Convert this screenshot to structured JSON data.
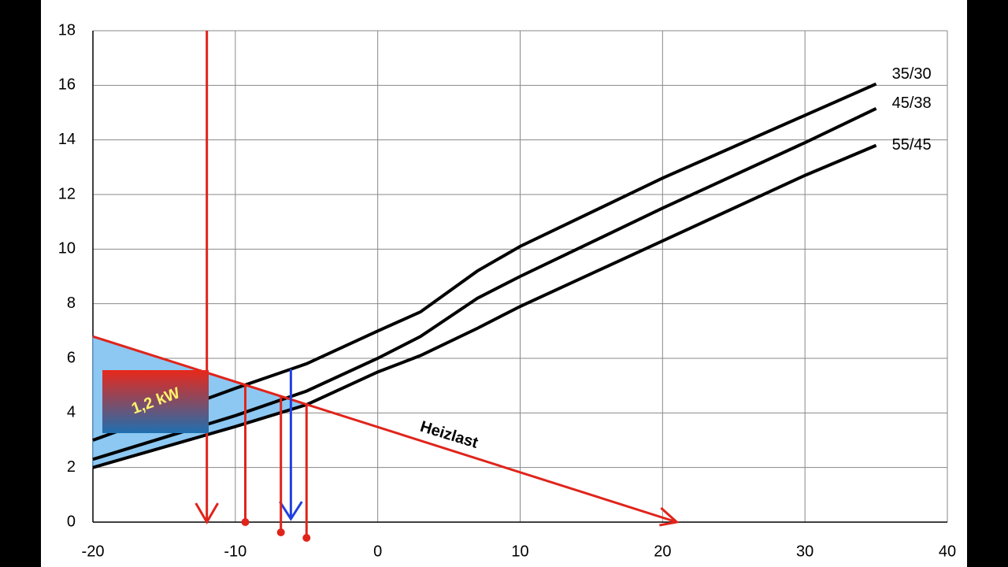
{
  "chart_data": {
    "type": "line",
    "xlim": [
      -20,
      40
    ],
    "xticks": [
      -20,
      -10,
      0,
      10,
      20,
      30,
      40
    ],
    "ylim": [
      0,
      18
    ],
    "yticks": [
      0,
      2,
      4,
      6,
      8,
      10,
      12,
      14,
      16,
      18
    ],
    "grid": true,
    "x": [
      -20,
      -10,
      -5,
      0,
      3,
      7,
      10,
      20,
      30,
      35
    ],
    "series": [
      {
        "name": "35/30",
        "color": "#000000",
        "values": [
          3.0,
          4.9,
          5.8,
          7.0,
          7.7,
          9.2,
          10.1,
          12.6,
          14.9,
          16.05
        ]
      },
      {
        "name": "45/38",
        "color": "#000000",
        "values": [
          2.3,
          3.9,
          4.8,
          6.0,
          6.8,
          8.2,
          9.0,
          11.5,
          13.9,
          15.15
        ]
      },
      {
        "name": "55/45",
        "color": "#000000",
        "values": [
          2.0,
          3.5,
          4.3,
          5.5,
          6.1,
          7.1,
          7.9,
          10.3,
          12.7,
          13.8
        ]
      }
    ],
    "load_line": {
      "name": "Heizlast",
      "color": "#e0241b",
      "x": [
        -20,
        21
      ],
      "values": [
        6.8,
        0
      ]
    },
    "balance_points": {
      "color": "#e0241b",
      "x": [
        -9.3,
        -6.8,
        -5.0
      ],
      "values": [
        5.0,
        4.6,
        4.35
      ]
    },
    "design_temperature": -12,
    "blue_marker": -6.1,
    "box_label": "1,2 kW"
  }
}
